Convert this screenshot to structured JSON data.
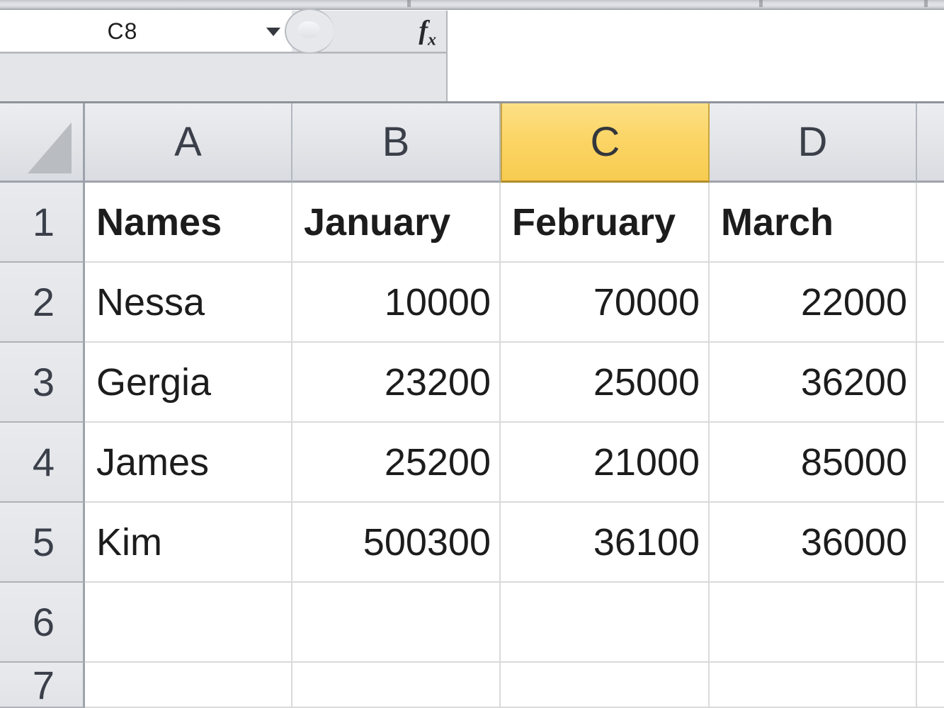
{
  "formula_bar": {
    "cell_reference": "C8",
    "formula_value": "",
    "fx_label": "fx"
  },
  "grid": {
    "columns": [
      "A",
      "B",
      "C",
      "D"
    ],
    "selected_column": "C",
    "rows": [
      {
        "header": "1",
        "cells": [
          "Names",
          "January",
          "February",
          "March"
        ]
      },
      {
        "header": "2",
        "cells": [
          "Nessa",
          "10000",
          "70000",
          "22000"
        ]
      },
      {
        "header": "3",
        "cells": [
          "Gergia",
          "23200",
          "25000",
          "36200"
        ]
      },
      {
        "header": "4",
        "cells": [
          "James",
          "25200",
          "21000",
          "85000"
        ]
      },
      {
        "header": "5",
        "cells": [
          "Kim",
          "500300",
          "36100",
          "36000"
        ]
      },
      {
        "header": "6",
        "cells": [
          "",
          "",
          "",
          ""
        ]
      },
      {
        "header": "7",
        "cells": [
          "",
          "",
          "",
          ""
        ]
      }
    ]
  },
  "colors": {
    "selected_column_fill": "#F8CC50",
    "header_fill": "#E2E4E8",
    "gridline": "#DADADA"
  }
}
